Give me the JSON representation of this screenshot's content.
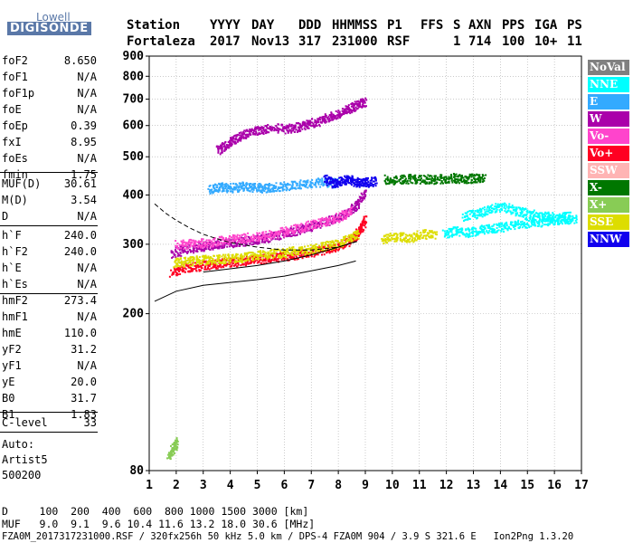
{
  "logo": {
    "line1": "Lowell",
    "line2": "DIGISONDE"
  },
  "header": {
    "row1": [
      "Station",
      "YYYY",
      "DAY",
      "DDD",
      "HHMMSS",
      "P1",
      "FFS",
      "S",
      "AXN",
      "PPS",
      "IGA",
      "PS"
    ],
    "row2": [
      "Fortaleza",
      "2017",
      "Nov13",
      "317",
      "231000",
      "RSF",
      "1",
      "714",
      "100",
      "10+",
      "11"
    ]
  },
  "params_group1": [
    {
      "label": "foF2",
      "value": "8.650"
    },
    {
      "label": "foF1",
      "value": "N/A"
    },
    {
      "label": "foF1p",
      "value": "N/A"
    },
    {
      "label": "foE",
      "value": "N/A"
    },
    {
      "label": "foEp",
      "value": "0.39"
    },
    {
      "label": "fxI",
      "value": "8.95"
    },
    {
      "label": "foEs",
      "value": "N/A"
    },
    {
      "label": "fmin",
      "value": "1.75"
    }
  ],
  "params_group2": [
    {
      "label": "MUF(D)",
      "value": "30.61"
    },
    {
      "label": "M(D)",
      "value": "3.54"
    },
    {
      "label": "D",
      "value": "N/A"
    }
  ],
  "params_group3": [
    {
      "label": "h`F",
      "value": "240.0"
    },
    {
      "label": "h`F2",
      "value": "240.0"
    },
    {
      "label": "h`E",
      "value": "N/A"
    },
    {
      "label": "h`Es",
      "value": "N/A"
    }
  ],
  "params_group4": [
    {
      "label": "hmF2",
      "value": "273.4"
    },
    {
      "label": "hmF1",
      "value": "N/A"
    },
    {
      "label": "hmE",
      "value": "110.0"
    },
    {
      "label": "yF2",
      "value": "31.2"
    },
    {
      "label": "yF1",
      "value": "N/A"
    },
    {
      "label": "yE",
      "value": "20.0"
    },
    {
      "label": "B0",
      "value": "31.7"
    },
    {
      "label": "B1",
      "value": "1.83"
    }
  ],
  "params_group5": [
    {
      "label": "C-level",
      "value": "33"
    }
  ],
  "autoscaling": {
    "line1": "Auto:",
    "line2": "Artist5",
    "line3": "500200"
  },
  "legend": [
    {
      "label": "NoVal",
      "color": "#808080"
    },
    {
      "label": "NNE",
      "color": "#00ffff"
    },
    {
      "label": "E",
      "color": "#33aaff"
    },
    {
      "label": "W",
      "color": "#aa00aa"
    },
    {
      "label": "Vo-",
      "color": "#ff44cc"
    },
    {
      "label": "Vo+",
      "color": "#ff0022"
    },
    {
      "label": "SSW",
      "color": "#ffb4b4"
    },
    {
      "label": "X-",
      "color": "#007700"
    },
    {
      "label": "X+",
      "color": "#88cc55"
    },
    {
      "label": "SSE",
      "color": "#dddd00"
    },
    {
      "label": "NNW",
      "color": "#1100ee"
    }
  ],
  "chart_data": {
    "type": "scatter",
    "x_ticks": [
      "1",
      "2",
      "3",
      "4",
      "5",
      "6",
      "7",
      "8",
      "9",
      "10",
      "11",
      "12",
      "13",
      "14",
      "15",
      "16",
      "17"
    ],
    "y_ticks": [
      "80",
      "200",
      "300",
      "400",
      "500",
      "600",
      "700",
      "800",
      "900"
    ],
    "xlim": [
      1,
      17
    ],
    "ylim": [
      80,
      900
    ],
    "grid": true,
    "y_scale": "log",
    "traces": [
      {
        "name": "Vo+",
        "color": "#ff0022",
        "points": [
          [
            1.8,
            255
          ],
          [
            2.3,
            262
          ],
          [
            2.8,
            265
          ],
          [
            3.3,
            268
          ],
          [
            3.8,
            270
          ],
          [
            4.3,
            272
          ],
          [
            4.8,
            275
          ],
          [
            5.3,
            277
          ],
          [
            5.8,
            280
          ],
          [
            6.3,
            282
          ],
          [
            6.8,
            285
          ],
          [
            7.3,
            290
          ],
          [
            7.8,
            295
          ],
          [
            8.3,
            305
          ],
          [
            8.6,
            315
          ],
          [
            8.8,
            330
          ],
          [
            9.0,
            350
          ]
        ]
      },
      {
        "name": "W",
        "color": "#aa00aa",
        "points": [
          [
            1.8,
            285
          ],
          [
            2.3,
            292
          ],
          [
            2.8,
            296
          ],
          [
            3.3,
            300
          ],
          [
            3.8,
            303
          ],
          [
            4.3,
            305
          ],
          [
            4.8,
            308
          ],
          [
            5.3,
            312
          ],
          [
            5.8,
            318
          ],
          [
            6.3,
            325
          ],
          [
            6.8,
            330
          ],
          [
            7.3,
            340
          ],
          [
            7.8,
            350
          ],
          [
            8.3,
            360
          ],
          [
            8.7,
            380
          ],
          [
            9.0,
            410
          ]
        ]
      },
      {
        "name": "SSE",
        "color": "#dddd00",
        "points": [
          [
            1.9,
            270
          ],
          [
            2.4,
            272
          ],
          [
            2.9,
            275
          ],
          [
            3.4,
            275
          ],
          [
            3.9,
            277
          ],
          [
            4.4,
            278
          ],
          [
            4.9,
            282
          ],
          [
            5.4,
            284
          ],
          [
            5.9,
            286
          ],
          [
            6.4,
            290
          ],
          [
            6.9,
            292
          ],
          [
            7.4,
            297
          ],
          [
            7.9,
            302
          ],
          [
            8.4,
            312
          ],
          [
            8.7,
            320
          ]
        ]
      },
      {
        "name": "Vo-",
        "color": "#ff44cc",
        "points": [
          [
            2.0,
            300
          ],
          [
            2.6,
            302
          ],
          [
            3.2,
            305
          ],
          [
            3.8,
            308
          ],
          [
            4.4,
            312
          ],
          [
            5.0,
            315
          ],
          [
            5.6,
            320
          ],
          [
            6.2,
            327
          ],
          [
            6.8,
            335
          ],
          [
            7.4,
            343
          ],
          [
            8.0,
            352
          ],
          [
            8.5,
            365
          ]
        ]
      },
      {
        "name": "E",
        "color": "#33aaff",
        "points": [
          [
            3.2,
            415
          ],
          [
            3.6,
            420
          ],
          [
            4.0,
            418
          ],
          [
            4.4,
            422
          ],
          [
            4.8,
            420
          ],
          [
            5.2,
            418
          ],
          [
            5.6,
            420
          ],
          [
            6.2,
            425
          ],
          [
            6.8,
            430
          ],
          [
            7.4,
            432
          ],
          [
            8.0,
            430
          ]
        ]
      },
      {
        "name": "W-2hop",
        "color": "#aa00aa",
        "points": [
          [
            3.5,
            520
          ],
          [
            3.9,
            540
          ],
          [
            4.2,
            560
          ],
          [
            4.6,
            575
          ],
          [
            5.0,
            585
          ],
          [
            5.4,
            595
          ],
          [
            6.0,
            590
          ],
          [
            6.4,
            595
          ],
          [
            6.8,
            605
          ],
          [
            7.2,
            615
          ],
          [
            7.6,
            630
          ],
          [
            8.0,
            645
          ],
          [
            8.4,
            665
          ],
          [
            8.7,
            680
          ],
          [
            9.0,
            695
          ]
        ]
      },
      {
        "name": "NNW",
        "color": "#1100ee",
        "points": [
          [
            7.5,
            440
          ],
          [
            7.8,
            430
          ],
          [
            8.1,
            435
          ],
          [
            8.4,
            440
          ],
          [
            8.7,
            430
          ],
          [
            9.0,
            432
          ],
          [
            9.4,
            435
          ]
        ]
      },
      {
        "name": "X-",
        "color": "#007700",
        "points": [
          [
            9.7,
            440
          ],
          [
            10.2,
            438
          ],
          [
            10.7,
            442
          ],
          [
            11.2,
            440
          ],
          [
            11.7,
            440
          ],
          [
            12.2,
            444
          ],
          [
            12.6,
            440
          ],
          [
            13.0,
            443
          ],
          [
            13.4,
            440
          ]
        ]
      },
      {
        "name": "NNE",
        "color": "#00ffff",
        "points": [
          [
            11.9,
            320
          ],
          [
            12.3,
            325
          ],
          [
            12.8,
            322
          ],
          [
            13.3,
            328
          ],
          [
            13.8,
            330
          ],
          [
            14.3,
            335
          ],
          [
            14.8,
            340
          ],
          [
            15.3,
            342
          ],
          [
            15.8,
            345
          ],
          [
            16.3,
            348
          ],
          [
            16.8,
            350
          ]
        ]
      },
      {
        "name": "NNE-upper",
        "color": "#00ffff",
        "points": [
          [
            12.6,
            355
          ],
          [
            13.1,
            360
          ],
          [
            13.6,
            370
          ],
          [
            14.1,
            375
          ],
          [
            14.6,
            365
          ],
          [
            15.1,
            360
          ],
          [
            15.6,
            355
          ],
          [
            16.1,
            352
          ],
          [
            16.6,
            355
          ]
        ]
      },
      {
        "name": "SSE-mid",
        "color": "#dddd00",
        "points": [
          [
            9.6,
            310
          ],
          [
            10.1,
            315
          ],
          [
            10.6,
            312
          ],
          [
            11.1,
            320
          ],
          [
            11.6,
            318
          ]
        ]
      },
      {
        "name": "low-E",
        "color": "#88cc55",
        "points": [
          [
            1.7,
            88
          ],
          [
            1.9,
            92
          ],
          [
            2.0,
            95
          ]
        ]
      }
    ],
    "profile_solid_lower": [
      [
        1.2,
        215
      ],
      [
        2.0,
        228
      ],
      [
        3.0,
        236
      ],
      [
        4.0,
        240
      ],
      [
        5.0,
        244
      ],
      [
        6.0,
        249
      ],
      [
        7.0,
        257
      ],
      [
        8.0,
        265
      ],
      [
        8.65,
        272
      ]
    ],
    "profile_solid_upper": [
      [
        3.0,
        255
      ],
      [
        4.0,
        260
      ],
      [
        5.0,
        265
      ],
      [
        6.0,
        272
      ],
      [
        7.0,
        282
      ],
      [
        8.0,
        295
      ],
      [
        8.65,
        305
      ]
    ],
    "profile_dashed": [
      [
        1.2,
        380
      ],
      [
        1.6,
        360
      ],
      [
        2.0,
        345
      ],
      [
        2.5,
        330
      ],
      [
        3.0,
        318
      ],
      [
        3.5,
        310
      ],
      [
        4.0,
        303
      ],
      [
        5.0,
        295
      ],
      [
        6.0,
        290
      ],
      [
        7.0,
        290
      ],
      [
        8.0,
        295
      ],
      [
        8.7,
        305
      ]
    ]
  },
  "bottom": {
    "line1": "D     100  200  400  600  800 1000 1500 3000 [km]",
    "line2": "MUF   9.0  9.1  9.6 10.4 11.6 13.2 18.0 30.6 [MHz]",
    "line3": "FZA0M_2017317231000.RSF / 320fx256h 50 kHz 5.0 km / DPS-4 FZA0M 904 / 3.9 S 321.6 E   Ion2Png 1.3.20"
  }
}
